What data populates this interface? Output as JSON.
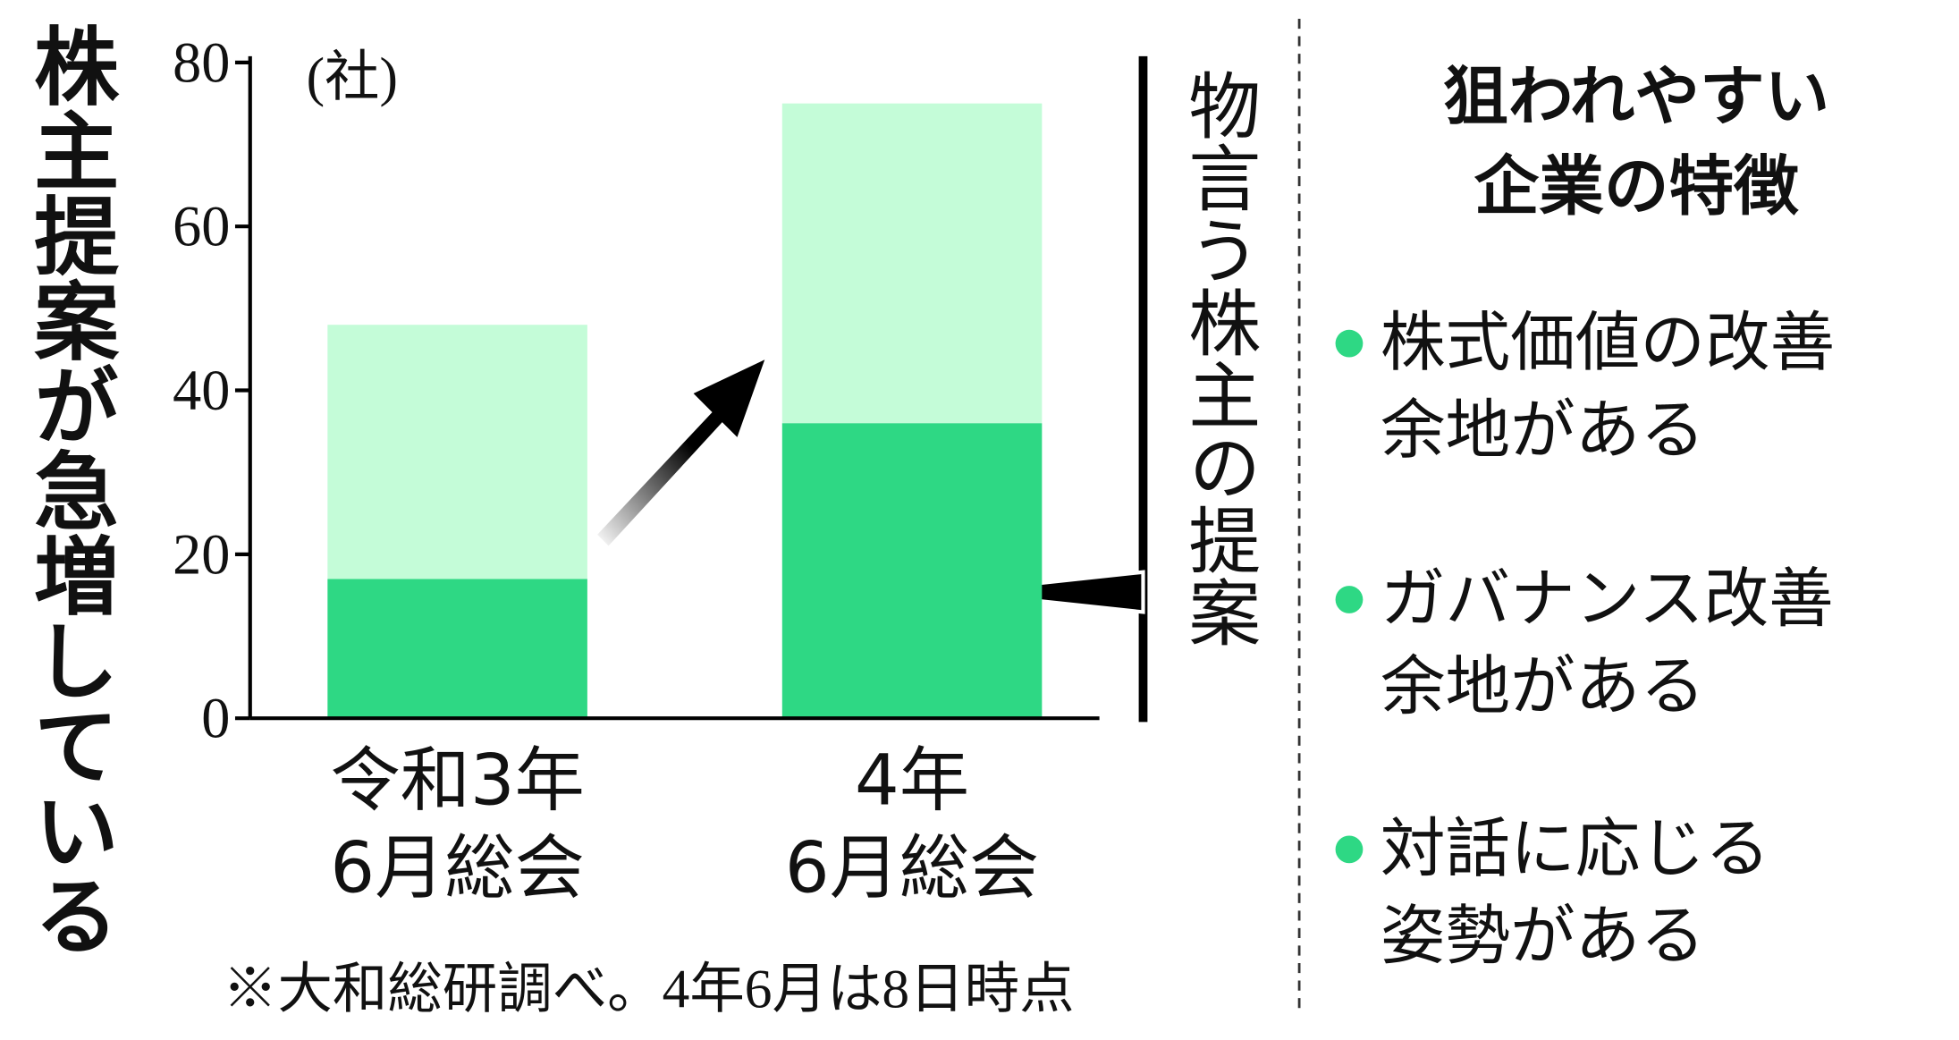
{
  "chart_data": {
    "type": "bar",
    "stacked": true,
    "title": "株主提案が急増している",
    "y_unit": "(社)",
    "categories": [
      [
        "令和3年",
        "6月総会"
      ],
      [
        "4年",
        "6月総会"
      ]
    ],
    "series": [
      {
        "name": "物言う株主の提案",
        "color": "#2ed884",
        "values": [
          17,
          36
        ]
      },
      {
        "color": "#c4fcd8",
        "values": [
          31,
          39
        ]
      }
    ],
    "ylim": [
      0,
      80
    ],
    "yticks": [
      0,
      20,
      40,
      60,
      80
    ],
    "note": "※大和総研調べ。4年6月は8日時点"
  },
  "panel": {
    "title": [
      "狙われやすい",
      "企業の特徴"
    ],
    "items": [
      [
        "株式価値の改善",
        "余地がある"
      ],
      [
        "ガバナンス改善",
        "余地がある"
      ],
      [
        "対話に応じる",
        "姿勢がある"
      ]
    ]
  }
}
